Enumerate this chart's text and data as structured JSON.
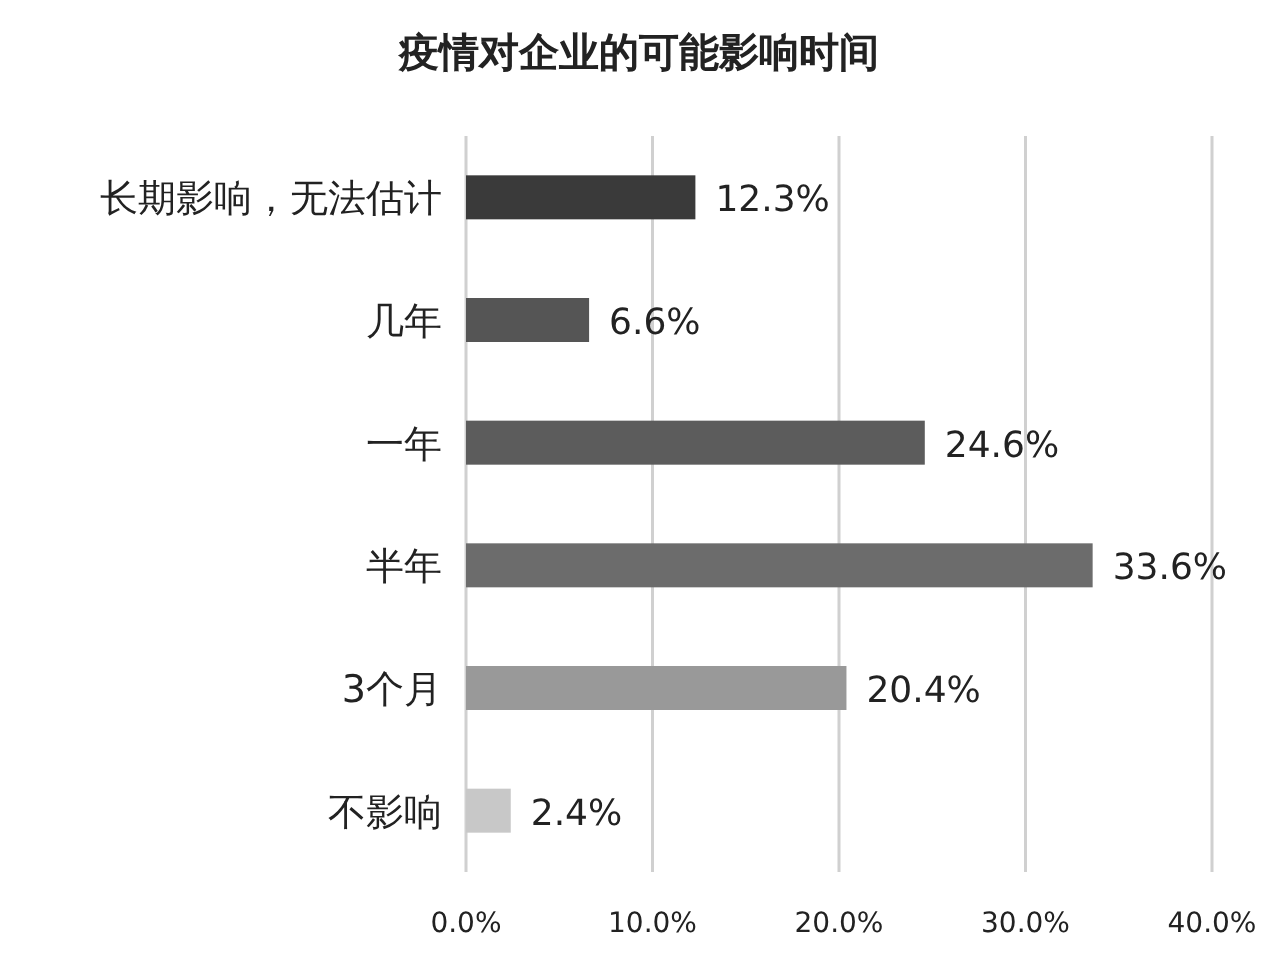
{
  "chart_data": {
    "type": "bar",
    "orientation": "horizontal",
    "title": "疫情对企业的可能影响时间",
    "categories": [
      "长期影响，无法估计",
      "几年",
      "一年",
      "半年",
      "3个月",
      "不影响"
    ],
    "values": [
      12.3,
      6.6,
      24.6,
      33.6,
      20.4,
      2.4
    ],
    "value_labels": [
      "12.3%",
      "6.6%",
      "24.6%",
      "33.6%",
      "20.4%",
      "2.4%"
    ],
    "colors": [
      "#3a3a3a",
      "#555555",
      "#5c5c5c",
      "#6c6c6c",
      "#999999",
      "#c8c8c8"
    ],
    "xlim": [
      0,
      40
    ],
    "xticks": [
      {
        "value": 0,
        "label": "0.0%"
      },
      {
        "value": 10,
        "label": "10.0%"
      },
      {
        "value": 20,
        "label": "20.0%"
      },
      {
        "value": 30,
        "label": "30.0%"
      },
      {
        "value": 40,
        "label": "40.0%"
      }
    ],
    "grid": "x"
  }
}
